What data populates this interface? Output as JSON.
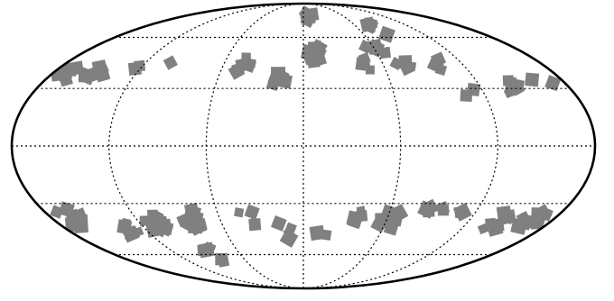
{
  "map": {
    "projection": "mollweide",
    "lon_meridians_deg": [
      -120,
      -60,
      0,
      60,
      120
    ],
    "lat_parallels_deg": [
      -60,
      -30,
      0,
      30,
      60
    ],
    "colors": {
      "patch": "#808080",
      "grid": "#000000",
      "boundary": "#000000",
      "background": "#ffffff"
    },
    "patch_clusters": [
      {
        "lon": -170,
        "lat": 38,
        "n": 6
      },
      {
        "lon": -150,
        "lat": 38,
        "n": 6
      },
      {
        "lon": -125,
        "lat": 45,
        "n": 2
      },
      {
        "lon": -100,
        "lat": 40,
        "n": 1
      },
      {
        "lon": -45,
        "lat": 43,
        "n": 7
      },
      {
        "lon": -15,
        "lat": 35,
        "n": 5
      },
      {
        "lon": 10,
        "lat": 50,
        "n": 14
      },
      {
        "lon": 10,
        "lat": 75,
        "n": 6
      },
      {
        "lon": 45,
        "lat": 45,
        "n": 4
      },
      {
        "lon": 60,
        "lat": 55,
        "n": 4
      },
      {
        "lon": 75,
        "lat": 40,
        "n": 5
      },
      {
        "lon": 80,
        "lat": 65,
        "n": 6
      },
      {
        "lon": 105,
        "lat": 45,
        "n": 4
      },
      {
        "lon": 110,
        "lat": 30,
        "n": 3
      },
      {
        "lon": 140,
        "lat": 30,
        "n": 6
      },
      {
        "lon": 165,
        "lat": 30,
        "n": 2
      },
      {
        "lon": -165,
        "lat": -38,
        "n": 10
      },
      {
        "lon": -130,
        "lat": -45,
        "n": 8
      },
      {
        "lon": -110,
        "lat": -40,
        "n": 16
      },
      {
        "lon": -80,
        "lat": -38,
        "n": 12
      },
      {
        "lon": -85,
        "lat": -60,
        "n": 5
      },
      {
        "lon": -40,
        "lat": -38,
        "n": 4
      },
      {
        "lon": -15,
        "lat": -45,
        "n": 4
      },
      {
        "lon": 15,
        "lat": -45,
        "n": 2
      },
      {
        "lon": 40,
        "lat": -36,
        "n": 4
      },
      {
        "lon": 60,
        "lat": -40,
        "n": 8
      },
      {
        "lon": 90,
        "lat": -35,
        "n": 5
      },
      {
        "lon": 115,
        "lat": -35,
        "n": 2
      },
      {
        "lon": 140,
        "lat": -40,
        "n": 8
      },
      {
        "lon": 165,
        "lat": -38,
        "n": 10
      }
    ]
  }
}
